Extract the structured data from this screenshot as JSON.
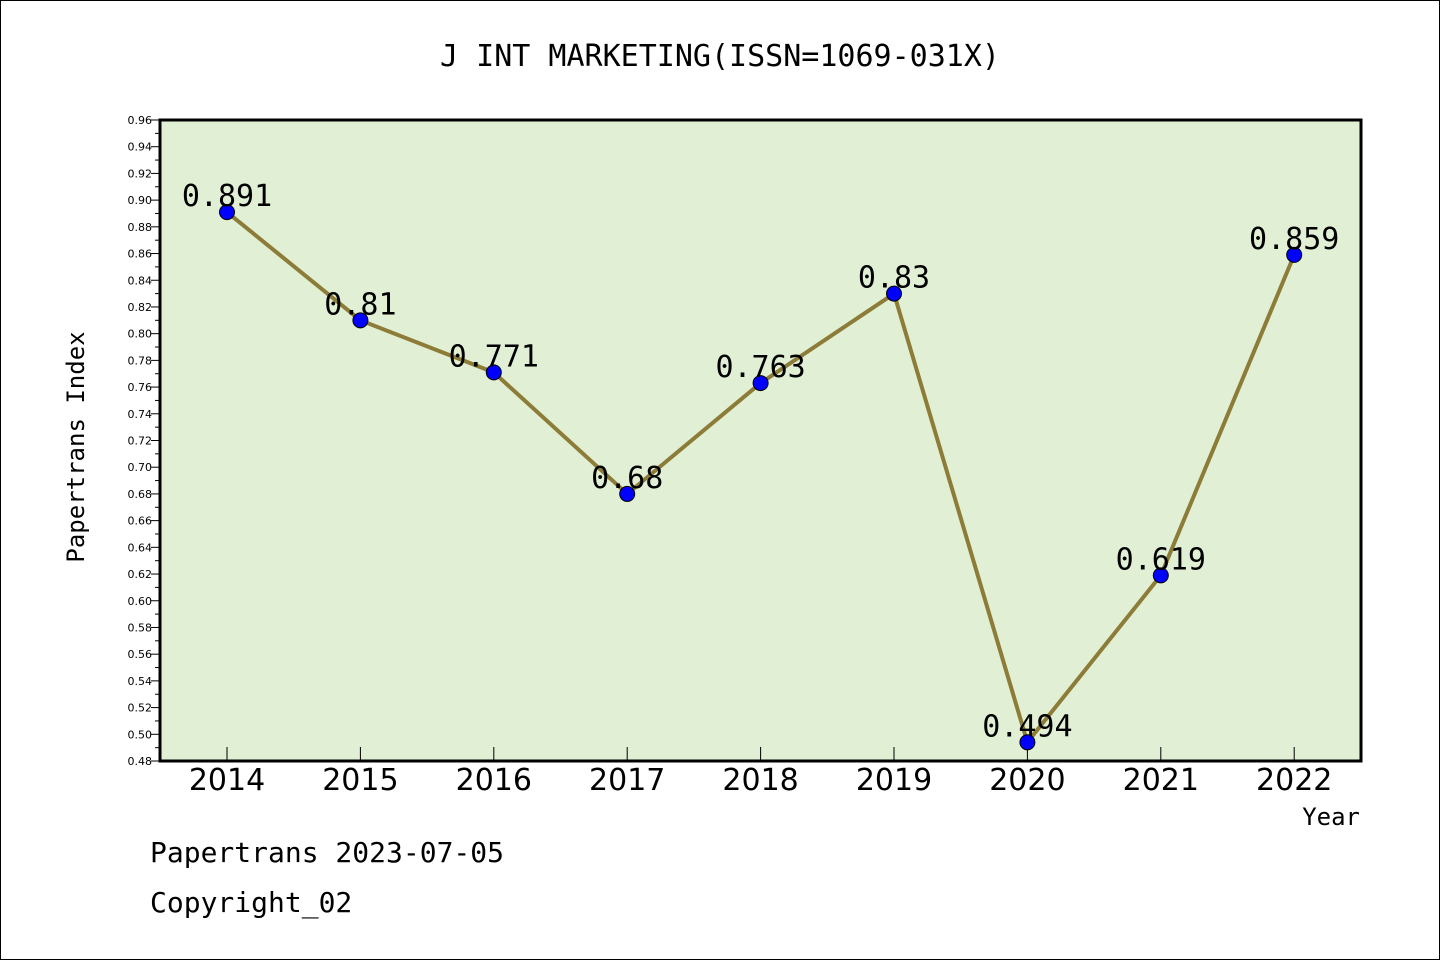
{
  "chart_data": {
    "type": "line",
    "title": "J INT MARKETING(ISSN=1069-031X)",
    "xlabel": "Year",
    "ylabel": "Papertrans Index",
    "categories": [
      "2014",
      "2015",
      "2016",
      "2017",
      "2018",
      "2019",
      "2020",
      "2021",
      "2022"
    ],
    "values": [
      0.891,
      0.81,
      0.771,
      0.68,
      0.763,
      0.83,
      0.494,
      0.619,
      0.859
    ],
    "data_labels": [
      "0.891",
      "0.81",
      "0.771",
      "0.68",
      "0.763",
      "0.83",
      "0.494",
      "0.619",
      "0.859"
    ],
    "ylim": [
      0.48,
      0.96
    ],
    "yticks": [
      "0.48",
      "0.50",
      "0.52",
      "0.54",
      "0.56",
      "0.58",
      "0.60",
      "0.62",
      "0.64",
      "0.66",
      "0.68",
      "0.70",
      "0.72",
      "0.74",
      "0.76",
      "0.78",
      "0.80",
      "0.82",
      "0.84",
      "0.86",
      "0.88",
      "0.90",
      "0.92",
      "0.94",
      "0.96"
    ],
    "grid": false,
    "colors": {
      "plot_background": "#e1efd5",
      "line": "#8c7c38",
      "marker": "#0000ff"
    }
  },
  "footer": {
    "line1": "Papertrans 2023-07-05",
    "line2": "Copyright_02"
  }
}
